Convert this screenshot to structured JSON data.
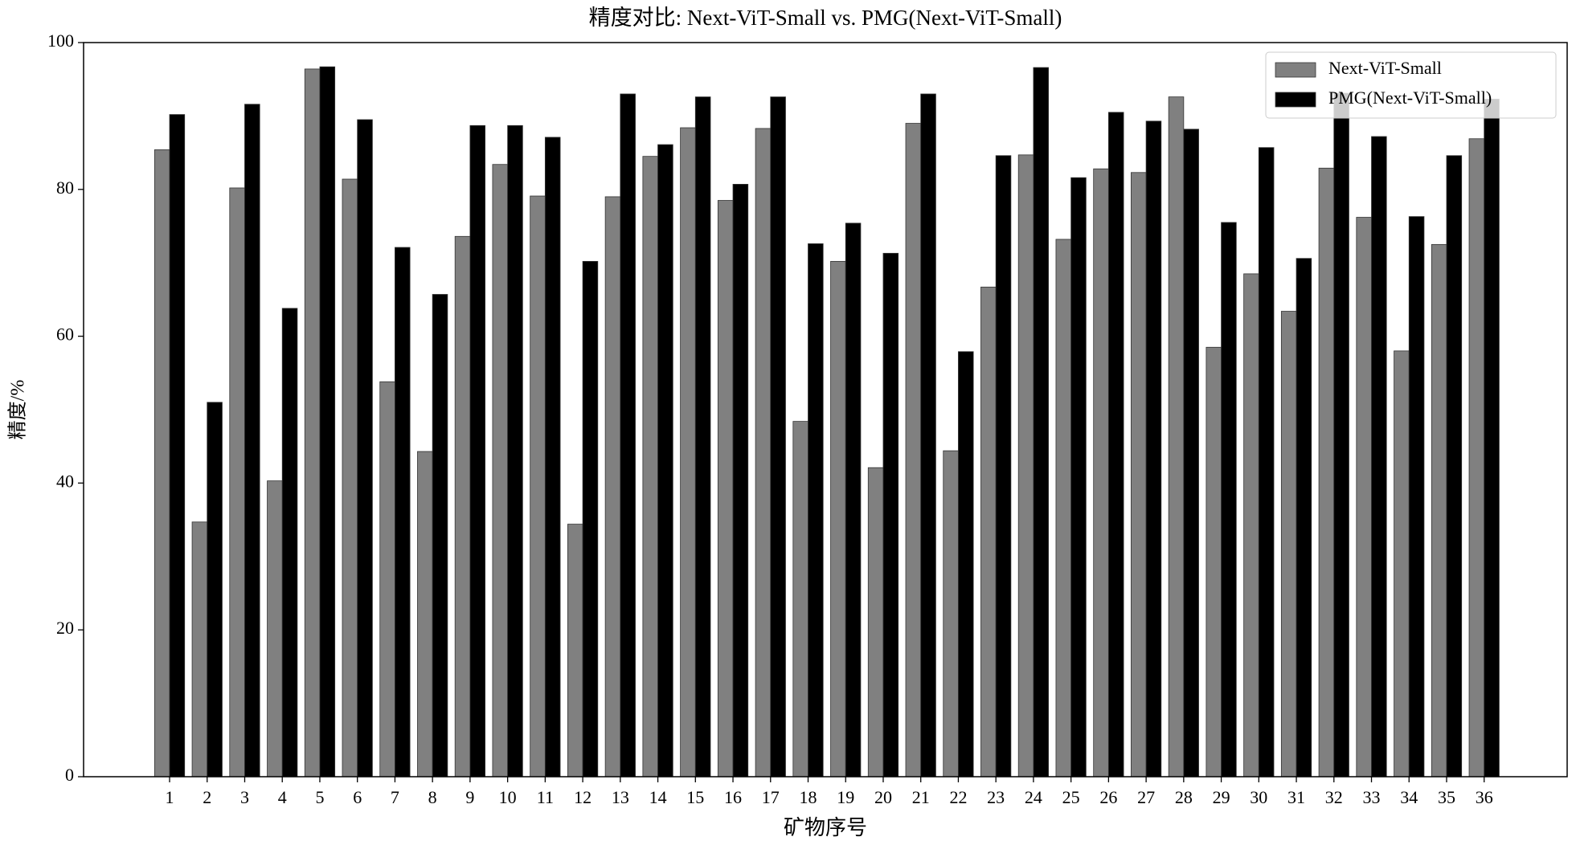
{
  "chart_data": {
    "type": "bar",
    "title": "精度对比: Next-ViT-Small vs. PMG(Next-ViT-Small)",
    "x_label": "矿物序号",
    "y_label": "精度/%",
    "categories": [
      "1",
      "2",
      "3",
      "4",
      "5",
      "6",
      "7",
      "8",
      "9",
      "10",
      "11",
      "12",
      "13",
      "14",
      "15",
      "16",
      "17",
      "18",
      "19",
      "20",
      "21",
      "22",
      "23",
      "24",
      "25",
      "26",
      "27",
      "28",
      "29",
      "30",
      "31",
      "32",
      "33",
      "34",
      "35",
      "36"
    ],
    "series": [
      {
        "name": "Next-ViT-Small",
        "color": "#808080",
        "values": [
          85.4,
          34.7,
          80.2,
          40.3,
          96.4,
          81.4,
          53.8,
          44.3,
          73.6,
          83.4,
          79.1,
          34.4,
          79.0,
          84.5,
          88.4,
          78.5,
          88.3,
          48.4,
          70.2,
          42.1,
          89.0,
          44.4,
          66.7,
          84.7,
          73.2,
          82.8,
          82.3,
          92.6,
          58.5,
          68.5,
          63.4,
          82.9,
          76.2,
          58.0,
          72.5,
          86.9
        ]
      },
      {
        "name": "PMG(Next-ViT-Small)",
        "color": "#000000",
        "values": [
          90.2,
          51.0,
          91.6,
          63.8,
          96.7,
          89.5,
          72.1,
          65.7,
          88.7,
          88.7,
          87.1,
          70.2,
          93.0,
          86.1,
          92.6,
          80.7,
          92.6,
          72.6,
          75.4,
          71.3,
          93.0,
          57.9,
          84.6,
          96.6,
          81.6,
          90.5,
          89.3,
          88.2,
          75.5,
          85.7,
          70.6,
          93.1,
          87.2,
          76.3,
          84.6,
          92.3
        ]
      }
    ],
    "ylim": [
      0,
      100
    ],
    "yticks": [
      0,
      20,
      40,
      60,
      80,
      100
    ],
    "legend": "upper-right"
  }
}
